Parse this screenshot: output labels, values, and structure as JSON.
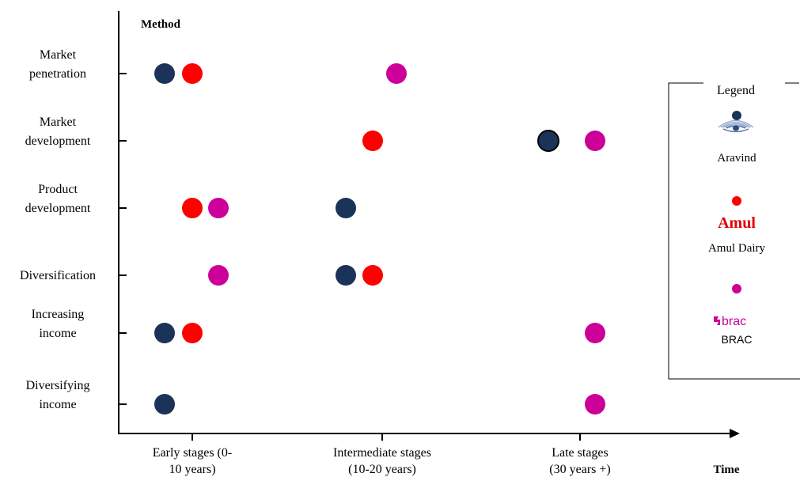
{
  "chart_data": {
    "type": "scatter",
    "ylabel": "Method",
    "xlabel": "Time",
    "y_categories": [
      [
        "Market",
        "penetration"
      ],
      [
        "Market",
        "development"
      ],
      [
        "Product",
        "development"
      ],
      [
        "Diversification"
      ],
      [
        "Increasing",
        "income"
      ],
      [
        "Diversifying",
        "income"
      ]
    ],
    "x_categories": [
      [
        "Early stages (0-",
        "10 years)"
      ],
      [
        "Intermediate stages",
        "(10-20 years)"
      ],
      [
        "Late stages",
        "(30 years +)"
      ]
    ],
    "series": [
      {
        "name": "Aravind",
        "color": "#1b3358",
        "points": [
          {
            "method": "Market penetration",
            "stage": "Early stages (0-10 years)"
          },
          {
            "method": "Market development",
            "stage": "Late stages (30 years +)"
          },
          {
            "method": "Product development",
            "stage": "Intermediate stages (10-20 years)"
          },
          {
            "method": "Diversification",
            "stage": "Intermediate stages (10-20 years)"
          },
          {
            "method": "Increasing income",
            "stage": "Early stages (0-10 years)"
          },
          {
            "method": "Diversifying income",
            "stage": "Early stages (0-10 years)"
          }
        ]
      },
      {
        "name": "Amul Dairy",
        "color": "#ff0000",
        "points": [
          {
            "method": "Market penetration",
            "stage": "Early stages (0-10 years)"
          },
          {
            "method": "Market development",
            "stage": "Intermediate stages (10-20 years)"
          },
          {
            "method": "Product development",
            "stage": "Early stages (0-10 years)"
          },
          {
            "method": "Diversification",
            "stage": "Intermediate stages (10-20 years)"
          },
          {
            "method": "Increasing income",
            "stage": "Early stages (0-10 years)"
          }
        ]
      },
      {
        "name": "BRAC",
        "color": "#cc0099",
        "points": [
          {
            "method": "Market penetration",
            "stage": "Intermediate stages (10-20 years)"
          },
          {
            "method": "Market development",
            "stage": "Late stages (30 years +)"
          },
          {
            "method": "Product development",
            "stage": "Early stages (0-10 years)"
          },
          {
            "method": "Diversification",
            "stage": "Early stages (0-10 years)"
          },
          {
            "method": "Increasing income",
            "stage": "Late stages (30 years +)"
          },
          {
            "method": "Diversifying income",
            "stage": "Late stages (30 years +)"
          }
        ]
      }
    ],
    "legend": {
      "title": "Legend",
      "position": "right",
      "entries": [
        {
          "series": "Aravind",
          "logo": "eye-logo-icon",
          "logo_text": "",
          "label": "Aravind"
        },
        {
          "series": "Amul Dairy",
          "logo": "amul-logo",
          "logo_text": "Amul",
          "label": "Amul Dairy"
        },
        {
          "series": "BRAC",
          "logo": "brac-logo",
          "logo_text": "brac",
          "label": "BRAC"
        }
      ]
    }
  }
}
